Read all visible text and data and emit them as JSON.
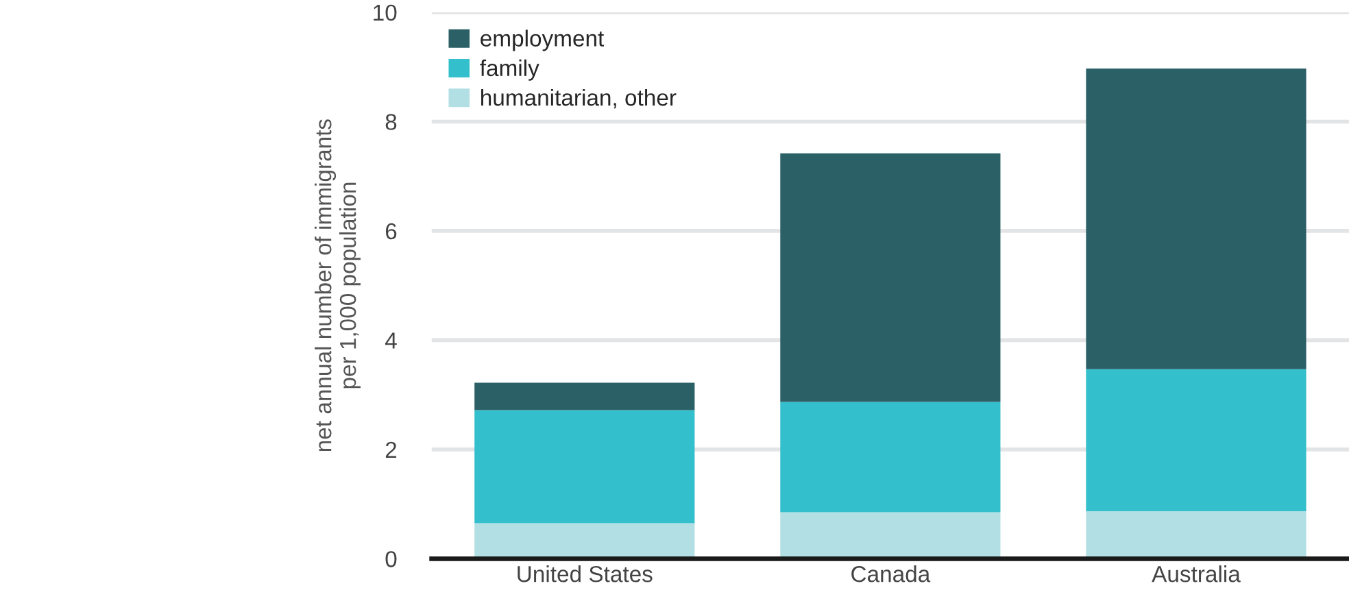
{
  "chart_data": {
    "type": "bar",
    "stacked": true,
    "ylabel": "net annual number of immigrants\nper 1,000 population",
    "categories": [
      "United States",
      "Canada",
      "Australia"
    ],
    "series": [
      {
        "name": "humanitarian, other",
        "color": "#b2dfe3",
        "values": [
          0.65,
          0.85,
          0.87
        ]
      },
      {
        "name": "family",
        "color": "#33bfcb",
        "values": [
          2.07,
          2.02,
          2.6
        ]
      },
      {
        "name": "employment",
        "color": "#2b6066",
        "values": [
          0.5,
          4.55,
          5.5
        ]
      }
    ],
    "ylim": [
      0,
      10
    ],
    "yticks": [
      0,
      2,
      4,
      6,
      8,
      10
    ],
    "grid": "y",
    "legend": "top left"
  }
}
